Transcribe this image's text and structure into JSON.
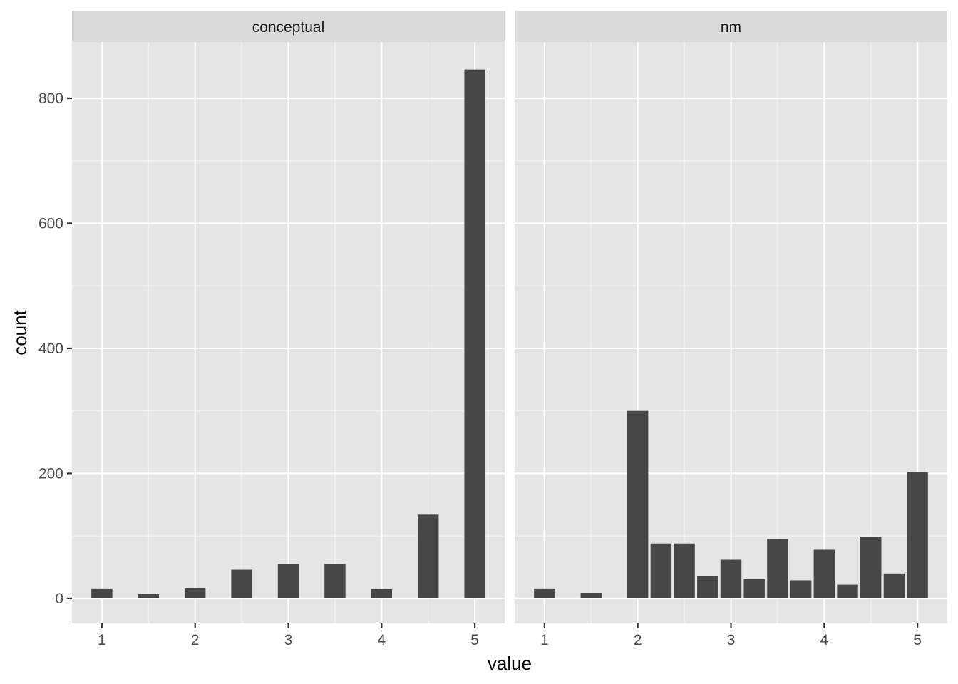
{
  "chart_data": {
    "type": "bar",
    "xlabel": "value",
    "ylabel": "count",
    "xlim": [
      0.68,
      5.32
    ],
    "ylim": [
      -40,
      890
    ],
    "x_ticks": [
      1,
      2,
      3,
      4,
      5
    ],
    "y_ticks": [
      0,
      200,
      400,
      600,
      800
    ],
    "bar_color": "#474747",
    "panel_color": "#e5e5e5",
    "strip_color": "#d9d9d9",
    "bar_width": 0.225,
    "facets": [
      {
        "label": "conceptual",
        "x": [
          1,
          1.5,
          2,
          2.5,
          3,
          3.5,
          4,
          4.5,
          5
        ],
        "values": [
          16,
          7,
          17,
          46,
          55,
          55,
          15,
          134,
          846
        ]
      },
      {
        "label": "nm",
        "x": [
          1,
          1.5,
          2,
          2.25,
          2.5,
          2.75,
          3,
          3.25,
          3.5,
          3.75,
          4,
          4.25,
          4.5,
          4.75,
          5
        ],
        "values": [
          16,
          9,
          300,
          88,
          88,
          36,
          62,
          31,
          95,
          29,
          78,
          22,
          99,
          40,
          202
        ]
      }
    ]
  }
}
